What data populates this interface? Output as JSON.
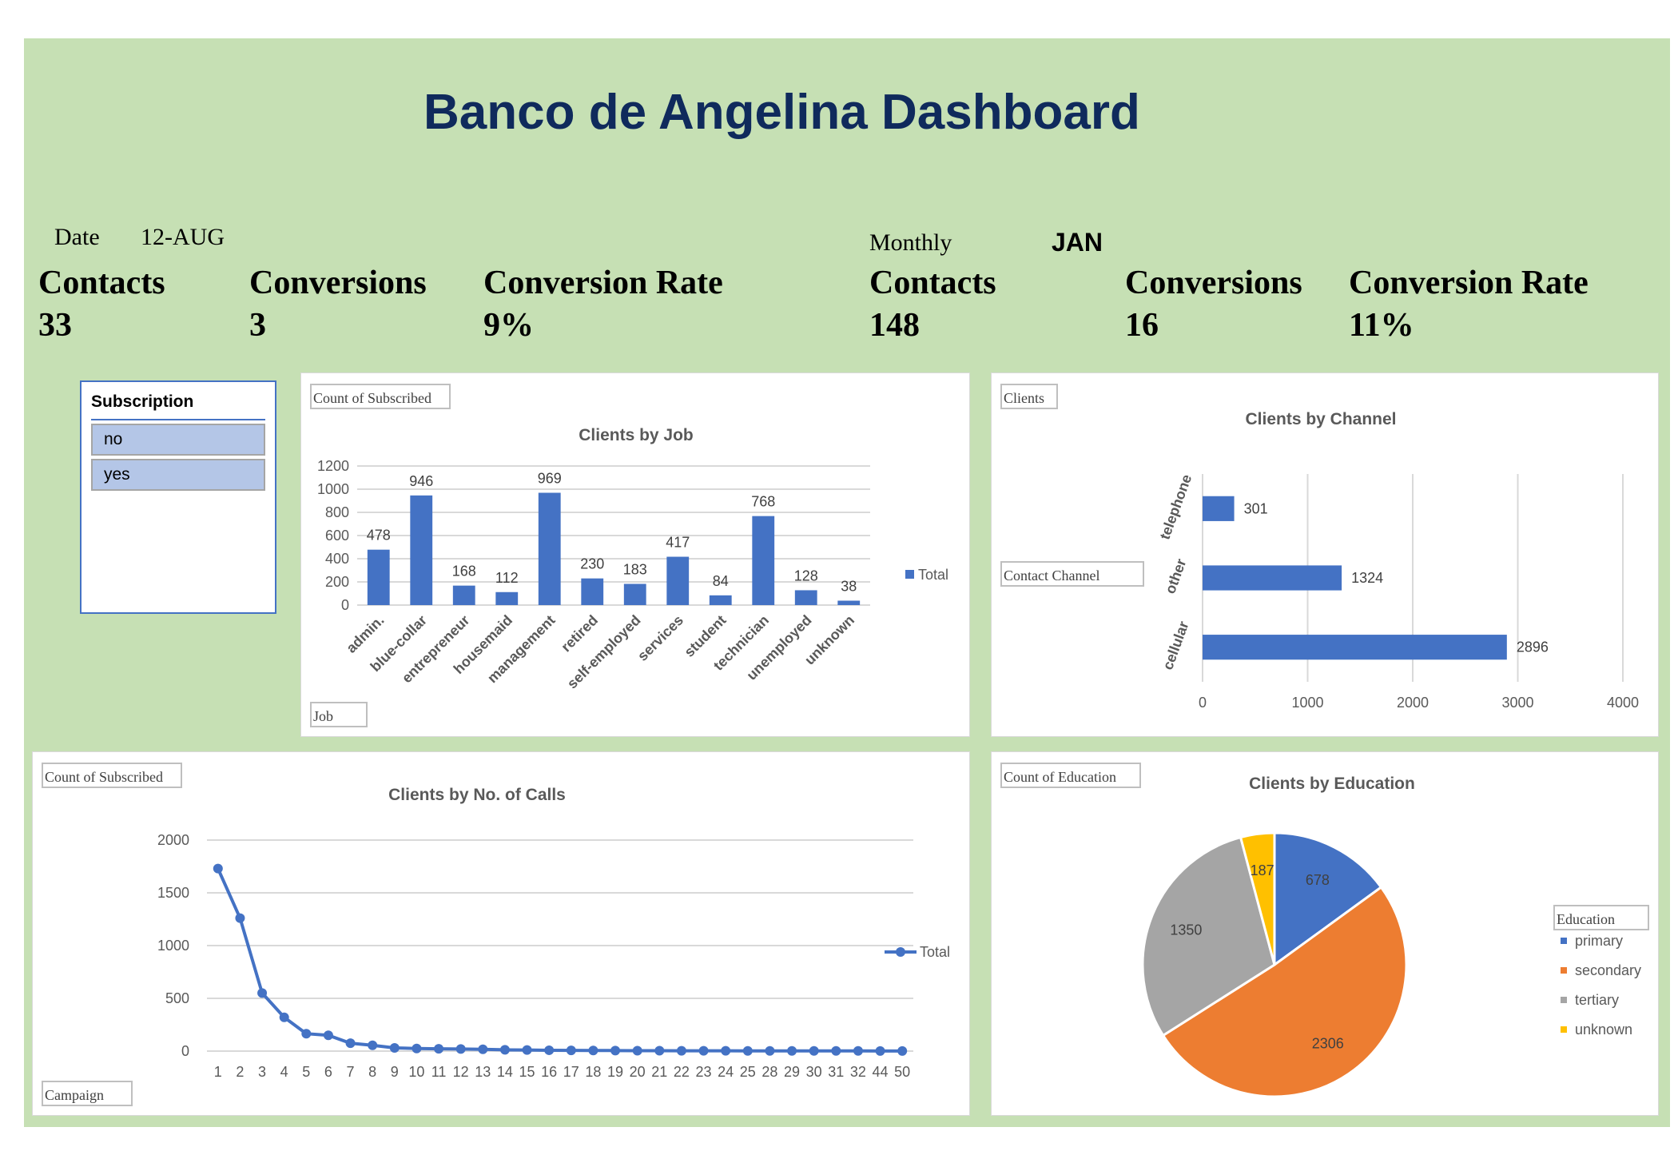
{
  "dashboard": {
    "title": "Banco de Angelina Dashboard",
    "background_color": "#c6e0b4",
    "title_color": "#0f2a5c"
  },
  "daily": {
    "date_label": "Date",
    "date_value": "12-AUG",
    "contacts_label": "Contacts",
    "contacts_value": "33",
    "conversions_label": "Conversions",
    "conversions_value": "3",
    "rate_label": "Conversion Rate",
    "rate_value": "9%"
  },
  "monthly": {
    "period_label": "Monthly",
    "period_value": "JAN",
    "contacts_label": "Contacts",
    "contacts_value": "148",
    "conversions_label": "Conversions",
    "conversions_value": "16",
    "rate_label": "Conversion Rate",
    "rate_value": "11%"
  },
  "slicer": {
    "header": "Subscription",
    "items": [
      "no",
      "yes"
    ]
  },
  "field_buttons": {
    "job_value": "Count of Subscribed",
    "job_axis": "Job",
    "channel_value": "Clients",
    "channel_axis": "Contact Channel",
    "calls_value": "Count of Subscribed",
    "calls_axis": "Campaign",
    "education_value": "Count of Education",
    "education_legend_title": "Education"
  },
  "chart_data": [
    {
      "type": "bar",
      "title": "Clients by Job",
      "categories": [
        "admin.",
        "blue-collar",
        "entrepreneur",
        "housemaid",
        "management",
        "retired",
        "self-employed",
        "services",
        "student",
        "technician",
        "unemployed",
        "unknown"
      ],
      "series": [
        {
          "name": "Total",
          "values": [
            478,
            946,
            168,
            112,
            969,
            230,
            183,
            417,
            84,
            768,
            128,
            38
          ]
        }
      ],
      "ylim": [
        0,
        1200
      ],
      "yticks": [
        0,
        200,
        400,
        600,
        800,
        1000,
        1200
      ],
      "legend": "right",
      "grid": true,
      "color": "#4472c4"
    },
    {
      "type": "bar",
      "orientation": "horizontal",
      "title": "Clients by Channel",
      "categories": [
        "telephone",
        "other",
        "cellular"
      ],
      "series": [
        {
          "values": [
            301,
            1324,
            2896
          ]
        }
      ],
      "xlim": [
        0,
        4000
      ],
      "xticks": [
        0,
        1000,
        2000,
        3000,
        4000
      ],
      "grid": true,
      "color": "#4472c4"
    },
    {
      "type": "line",
      "title": "Clients by No. of Calls",
      "x": [
        "1",
        "2",
        "3",
        "4",
        "5",
        "6",
        "7",
        "8",
        "9",
        "10",
        "11",
        "12",
        "13",
        "14",
        "15",
        "16",
        "17",
        "18",
        "19",
        "20",
        "21",
        "22",
        "23",
        "24",
        "25",
        "28",
        "29",
        "30",
        "31",
        "32",
        "44",
        "50"
      ],
      "series": [
        {
          "name": "Total",
          "values": [
            1730,
            1260,
            550,
            320,
            165,
            150,
            75,
            55,
            30,
            25,
            22,
            20,
            17,
            12,
            10,
            8,
            7,
            6,
            5,
            4,
            4,
            3,
            3,
            3,
            2,
            2,
            2,
            2,
            2,
            2,
            1,
            1
          ]
        }
      ],
      "ylim": [
        0,
        2000
      ],
      "yticks": [
        0,
        500,
        1000,
        1500,
        2000
      ],
      "legend": "right",
      "grid": true,
      "color": "#4472c4"
    },
    {
      "type": "pie",
      "title": "Clients by Education",
      "categories": [
        "primary",
        "secondary",
        "tertiary",
        "unknown"
      ],
      "values": [
        678,
        2306,
        1350,
        187
      ],
      "colors": [
        "#4472c4",
        "#ed7d31",
        "#a5a5a5",
        "#ffc000"
      ],
      "legend": "right"
    }
  ]
}
